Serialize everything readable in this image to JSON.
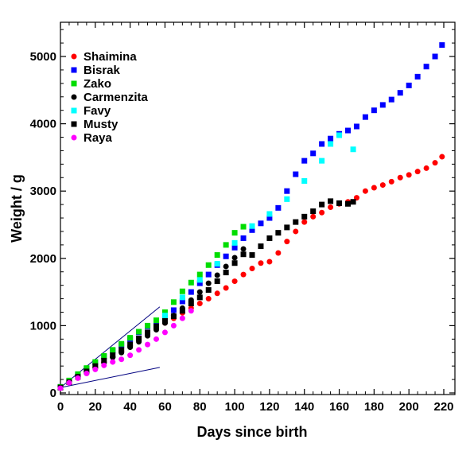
{
  "chart_data": {
    "type": "scatter",
    "title": "",
    "xlabel": "Days since birth",
    "ylabel": "Weight / g",
    "xlim": [
      0,
      222
    ],
    "ylim": [
      0,
      5500
    ],
    "x_ticks": [
      0,
      20,
      40,
      60,
      80,
      100,
      120,
      140,
      160,
      180,
      200,
      220
    ],
    "y_ticks": [
      0,
      1000,
      2000,
      3000,
      4000,
      5000
    ],
    "grid": false,
    "legend_position": "top-left",
    "series": [
      {
        "name": "Shaimina",
        "color": "#ff0000",
        "marker": "circle",
        "points": [
          [
            0,
            80
          ],
          [
            5,
            170
          ],
          [
            10,
            250
          ],
          [
            15,
            320
          ],
          [
            20,
            390
          ],
          [
            25,
            460
          ],
          [
            30,
            540
          ],
          [
            35,
            620
          ],
          [
            40,
            700
          ],
          [
            45,
            790
          ],
          [
            50,
            870
          ],
          [
            55,
            960
          ],
          [
            60,
            1040
          ],
          [
            65,
            1110
          ],
          [
            70,
            1190
          ],
          [
            75,
            1260
          ],
          [
            80,
            1330
          ],
          [
            85,
            1400
          ],
          [
            90,
            1480
          ],
          [
            95,
            1560
          ],
          [
            100,
            1660
          ],
          [
            105,
            1760
          ],
          [
            110,
            1850
          ],
          [
            115,
            1930
          ],
          [
            120,
            1950
          ],
          [
            125,
            2080
          ],
          [
            130,
            2250
          ],
          [
            135,
            2400
          ],
          [
            140,
            2540
          ],
          [
            145,
            2620
          ],
          [
            150,
            2680
          ],
          [
            155,
            2760
          ],
          [
            160,
            2810
          ],
          [
            165,
            2840
          ],
          [
            170,
            2900
          ],
          [
            175,
            3000
          ],
          [
            180,
            3050
          ],
          [
            185,
            3090
          ],
          [
            190,
            3140
          ],
          [
            195,
            3200
          ],
          [
            200,
            3240
          ],
          [
            205,
            3290
          ],
          [
            210,
            3340
          ],
          [
            215,
            3420
          ],
          [
            219,
            3510
          ]
        ]
      },
      {
        "name": "Bisrak",
        "color": "#0000ff",
        "marker": "square",
        "points": [
          [
            0,
            90
          ],
          [
            5,
            180
          ],
          [
            10,
            270
          ],
          [
            15,
            360
          ],
          [
            20,
            450
          ],
          [
            25,
            540
          ],
          [
            30,
            630
          ],
          [
            35,
            710
          ],
          [
            40,
            800
          ],
          [
            45,
            900
          ],
          [
            50,
            990
          ],
          [
            55,
            1060
          ],
          [
            60,
            1130
          ],
          [
            65,
            1230
          ],
          [
            70,
            1360
          ],
          [
            75,
            1500
          ],
          [
            80,
            1630
          ],
          [
            85,
            1760
          ],
          [
            90,
            1900
          ],
          [
            95,
            2030
          ],
          [
            100,
            2160
          ],
          [
            105,
            2300
          ],
          [
            110,
            2420
          ],
          [
            115,
            2520
          ],
          [
            120,
            2600
          ],
          [
            125,
            2750
          ],
          [
            130,
            3000
          ],
          [
            135,
            3250
          ],
          [
            140,
            3450
          ],
          [
            145,
            3560
          ],
          [
            150,
            3700
          ],
          [
            155,
            3780
          ],
          [
            160,
            3850
          ],
          [
            165,
            3900
          ],
          [
            170,
            3960
          ],
          [
            175,
            4100
          ],
          [
            180,
            4200
          ],
          [
            185,
            4280
          ],
          [
            190,
            4360
          ],
          [
            195,
            4460
          ],
          [
            200,
            4570
          ],
          [
            205,
            4700
          ],
          [
            210,
            4850
          ],
          [
            215,
            5000
          ],
          [
            219,
            5170
          ]
        ]
      },
      {
        "name": "Zako",
        "color": "#00dd00",
        "marker": "square",
        "points": [
          [
            0,
            90
          ],
          [
            5,
            185
          ],
          [
            10,
            280
          ],
          [
            15,
            370
          ],
          [
            20,
            460
          ],
          [
            25,
            550
          ],
          [
            30,
            640
          ],
          [
            35,
            730
          ],
          [
            40,
            820
          ],
          [
            45,
            910
          ],
          [
            50,
            1000
          ],
          [
            55,
            1080
          ],
          [
            60,
            1200
          ],
          [
            65,
            1350
          ],
          [
            70,
            1510
          ],
          [
            75,
            1640
          ],
          [
            80,
            1760
          ],
          [
            85,
            1900
          ],
          [
            90,
            2050
          ],
          [
            95,
            2200
          ],
          [
            100,
            2380
          ],
          [
            105,
            2470
          ]
        ]
      },
      {
        "name": "Carmenzita",
        "color": "#000000",
        "marker": "circle",
        "points": [
          [
            0,
            80
          ],
          [
            5,
            160
          ],
          [
            10,
            240
          ],
          [
            15,
            310
          ],
          [
            20,
            380
          ],
          [
            25,
            450
          ],
          [
            30,
            530
          ],
          [
            35,
            600
          ],
          [
            40,
            680
          ],
          [
            45,
            760
          ],
          [
            50,
            850
          ],
          [
            55,
            940
          ],
          [
            60,
            1040
          ],
          [
            65,
            1150
          ],
          [
            70,
            1260
          ],
          [
            75,
            1380
          ],
          [
            80,
            1500
          ],
          [
            85,
            1630
          ],
          [
            90,
            1750
          ],
          [
            95,
            1880
          ],
          [
            100,
            2010
          ],
          [
            105,
            2140
          ]
        ]
      },
      {
        "name": "Favy",
        "color": "#00ffff",
        "marker": "square",
        "points": [
          [
            60,
            1150
          ],
          [
            70,
            1420
          ],
          [
            80,
            1680
          ],
          [
            90,
            1920
          ],
          [
            100,
            2230
          ],
          [
            110,
            2480
          ],
          [
            120,
            2660
          ],
          [
            130,
            2880
          ],
          [
            140,
            3150
          ],
          [
            150,
            3450
          ],
          [
            155,
            3700
          ],
          [
            160,
            3830
          ],
          [
            168,
            3620
          ]
        ]
      },
      {
        "name": "Musty",
        "color": "#000000",
        "marker": "square",
        "points": [
          [
            0,
            80
          ],
          [
            5,
            160
          ],
          [
            10,
            240
          ],
          [
            15,
            320
          ],
          [
            20,
            400
          ],
          [
            25,
            480
          ],
          [
            30,
            560
          ],
          [
            35,
            640
          ],
          [
            40,
            720
          ],
          [
            45,
            810
          ],
          [
            50,
            900
          ],
          [
            55,
            990
          ],
          [
            60,
            1070
          ],
          [
            65,
            1140
          ],
          [
            70,
            1220
          ],
          [
            75,
            1330
          ],
          [
            80,
            1420
          ],
          [
            85,
            1530
          ],
          [
            90,
            1660
          ],
          [
            95,
            1790
          ],
          [
            100,
            1930
          ],
          [
            105,
            2060
          ],
          [
            110,
            2050
          ],
          [
            115,
            2180
          ],
          [
            120,
            2300
          ],
          [
            125,
            2380
          ],
          [
            130,
            2460
          ],
          [
            135,
            2540
          ],
          [
            140,
            2620
          ],
          [
            145,
            2700
          ],
          [
            150,
            2800
          ],
          [
            155,
            2850
          ],
          [
            160,
            2820
          ],
          [
            165,
            2810
          ],
          [
            168,
            2840
          ]
        ]
      },
      {
        "name": "Raya",
        "color": "#ff00ff",
        "marker": "circle",
        "points": [
          [
            0,
            70
          ],
          [
            5,
            150
          ],
          [
            10,
            220
          ],
          [
            15,
            290
          ],
          [
            20,
            350
          ],
          [
            25,
            410
          ],
          [
            30,
            460
          ],
          [
            35,
            500
          ],
          [
            40,
            560
          ],
          [
            45,
            640
          ],
          [
            50,
            720
          ],
          [
            55,
            800
          ],
          [
            60,
            900
          ],
          [
            65,
            1000
          ],
          [
            70,
            1110
          ],
          [
            75,
            1220
          ]
        ]
      }
    ],
    "reference_lines": [
      {
        "color": "#000080",
        "from": [
          0,
          80
        ],
        "to": [
          57,
          1280
        ]
      },
      {
        "color": "#000080",
        "from": [
          0,
          80
        ],
        "to": [
          57,
          380
        ]
      }
    ]
  }
}
